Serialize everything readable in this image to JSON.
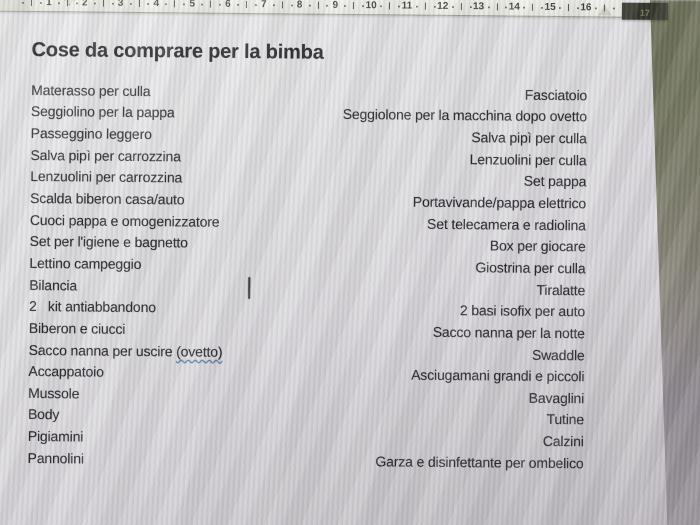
{
  "ruler": {
    "numbers": [
      "1",
      "2",
      "3",
      "4",
      "5",
      "6",
      "7",
      "8",
      "9",
      "10",
      "11",
      "12",
      "13",
      "14",
      "15",
      "16"
    ],
    "overflow_number": "17"
  },
  "document": {
    "title": "Cose da comprare per la bimba",
    "rows": [
      {
        "left": "Materasso per culla",
        "right": "Fasciatoio"
      },
      {
        "left": "Seggiolino per la pappa",
        "right": "Seggiolone per la macchina dopo ovetto"
      },
      {
        "left": "Passeggino leggero",
        "right": "Salva pipì per culla"
      },
      {
        "left": "Salva pipì per carrozzina",
        "right": "Lenzuolini per culla"
      },
      {
        "left": "Lenzuolini per carrozzina",
        "right": "Set pappa"
      },
      {
        "left": "Scalda biberon casa/auto",
        "right": "Portavivande/pappa elettrico"
      },
      {
        "left": "Cuoci pappa e omogenizzatore",
        "right": "Set telecamera e radiolina"
      },
      {
        "left": "Set per l'igiene e bagnetto",
        "right": "Box per giocare"
      },
      {
        "left": "Lettino campeggio",
        "right": "Giostrina per culla"
      },
      {
        "left": "Bilancia",
        "right": "Tiralatte"
      },
      {
        "left": "2   kit antiabbandono",
        "right": "2 basi isofix per auto"
      },
      {
        "left": "Biberon e ciucci",
        "right": "Sacco nanna per la notte"
      },
      {
        "left_prefix": "Sacco nanna per uscire ",
        "left_misspelled": "(ovetto)",
        "right": "Swaddle"
      },
      {
        "left": "Accappatoio",
        "right": "Asciugamani grandi e piccoli"
      },
      {
        "left": "Mussole",
        "right": "Bavaglini"
      },
      {
        "left": "Body",
        "right": "Tutine"
      },
      {
        "left": "Pigiamini",
        "right": "Calzini"
      },
      {
        "left": "Pannolini",
        "right": "Garza e disinfettante per ombelico"
      }
    ]
  },
  "colors": {
    "page_top": "#e9e8ea",
    "page_bottom": "#cbc7cc",
    "text": "#2b2b30",
    "title_text": "#1b1b20",
    "spellcheck_underline": "#4a7eb5",
    "screen_edge_olive": "#6e715a",
    "ruler_band": "#3b3c2f"
  }
}
